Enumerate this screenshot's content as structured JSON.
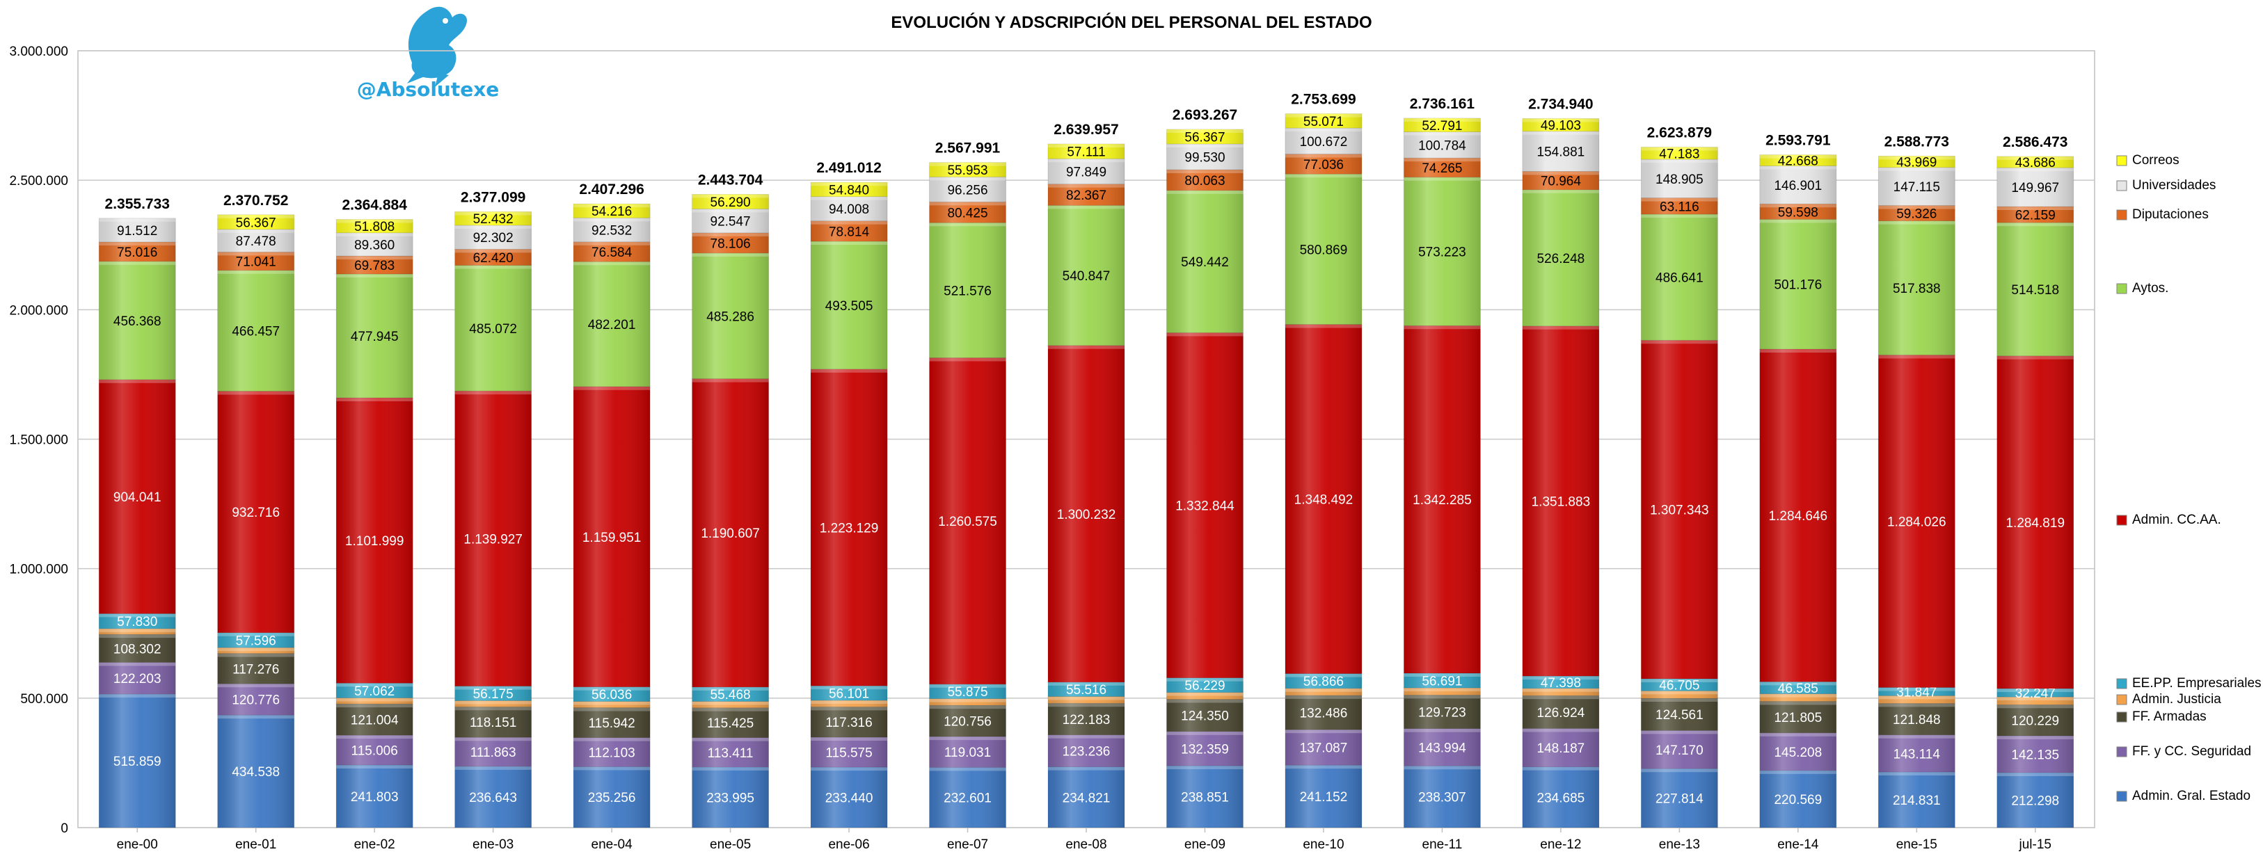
{
  "chart_data": {
    "type": "bar",
    "stacked": true,
    "title": "EVOLUCIÓN Y ADSCRIPCIÓN DEL PERSONAL DEL ESTADO",
    "watermark_handle": "@Absolutexe",
    "xlabel": "",
    "ylabel": "",
    "ylim": [
      0,
      3000000
    ],
    "yticks": [
      "0",
      "500.000",
      "1.000.000",
      "1.500.000",
      "2.000.000",
      "2.500.000",
      "3.000.000"
    ],
    "grid": true,
    "legend_position": "right",
    "categories": [
      "ene-00",
      "ene-01",
      "ene-02",
      "ene-03",
      "ene-04",
      "ene-05",
      "ene-06",
      "ene-07",
      "ene-08",
      "ene-09",
      "ene-10",
      "ene-11",
      "ene-12",
      "ene-13",
      "ene-14",
      "ene-15",
      "jul-15"
    ],
    "totals": [
      2355733,
      2370752,
      2364884,
      2377099,
      2407296,
      2443704,
      2491012,
      2567991,
      2639957,
      2693267,
      2753699,
      2736161,
      2734940,
      2623879,
      2593791,
      2588773,
      2586473
    ],
    "series": [
      {
        "name": "Admin. Gral. Estado",
        "color": "#3D78C4",
        "values": [
          515859,
          434538,
          241803,
          236643,
          235256,
          233995,
          233440,
          232601,
          234821,
          238851,
          241152,
          238307,
          234685,
          227814,
          220569,
          214831,
          212298
        ]
      },
      {
        "name": "FF. y CC. Seguridad",
        "color": "#7E62A8",
        "values": [
          122203,
          120776,
          115006,
          111863,
          112103,
          113411,
          115575,
          119031,
          123236,
          132359,
          137087,
          143994,
          148187,
          147170,
          145208,
          143114,
          142135
        ]
      },
      {
        "name": "FF. Armadas",
        "color": "#4D4A34",
        "values": [
          108302,
          117276,
          121004,
          118151,
          115942,
          115425,
          117316,
          120756,
          122183,
          124350,
          132486,
          129723,
          126924,
          124561,
          121805,
          121848,
          120229
        ]
      },
      {
        "name": "Admin. Justicia",
        "color": "#F3A14A",
        "values": [
          22000,
          22500,
          23000,
          23500,
          24000,
          24500,
          25000,
          25500,
          26000,
          26500,
          27000,
          27500,
          28000,
          28500,
          29000,
          29500,
          30000
        ]
      },
      {
        "name": "EE.PP. Empresariales",
        "color": "#31A8C9",
        "values": [
          57830,
          57596,
          57062,
          56175,
          56036,
          55468,
          56101,
          55875,
          55516,
          56229,
          56866,
          56691,
          47398,
          46705,
          46585,
          31847,
          32247
        ]
      },
      {
        "name": "Admin. CC.AA.",
        "color": "#C80000",
        "values": [
          904041,
          932716,
          1101999,
          1139927,
          1159951,
          1190607,
          1223129,
          1260575,
          1300232,
          1332844,
          1348492,
          1342285,
          1351883,
          1307343,
          1284646,
          1284026,
          1284819
        ]
      },
      {
        "name": "Aytos.",
        "color": "#9BD651",
        "values": [
          456368,
          466457,
          477945,
          485072,
          482201,
          485286,
          493505,
          521576,
          540847,
          549442,
          580869,
          573223,
          526248,
          486641,
          501176,
          517838,
          514518
        ]
      },
      {
        "name": "Diputaciones",
        "color": "#E2661B",
        "values": [
          75016,
          71041,
          69783,
          62420,
          76584,
          78106,
          78814,
          80425,
          82367,
          80063,
          77036,
          74265,
          70964,
          63116,
          59598,
          59326,
          62159
        ]
      },
      {
        "name": "Universidades",
        "color": "#E6E6E6",
        "values": [
          91512,
          87478,
          89360,
          92302,
          92532,
          92547,
          94008,
          96256,
          97849,
          99530,
          100672,
          100784,
          154881,
          148905,
          146901,
          147115,
          149967
        ]
      },
      {
        "name": "Correos",
        "color": "#FFFF1A",
        "values": [
          null,
          56367,
          51808,
          52432,
          54216,
          56290,
          54840,
          55953,
          57111,
          56367,
          55071,
          52791,
          49103,
          47183,
          42668,
          43969,
          43686
        ]
      }
    ],
    "label_hidden_series": [
      "Admin. Justicia"
    ]
  }
}
